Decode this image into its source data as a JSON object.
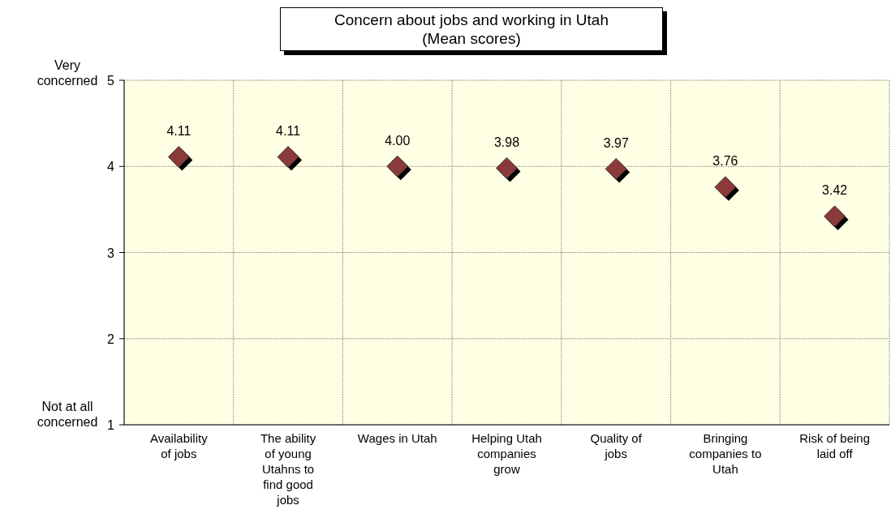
{
  "chart_data": {
    "type": "scatter",
    "title": "Concern about jobs and working in Utah",
    "subtitle": "(Mean scores)",
    "categories": [
      "Availability of jobs",
      "The ability of young Utahns to find good jobs",
      "Wages in Utah",
      "Helping Utah companies grow",
      "Quality of jobs",
      "Bringing companies to Utah",
      "Risk of being laid off"
    ],
    "values": [
      4.11,
      4.11,
      4.0,
      3.98,
      3.97,
      3.76,
      3.42
    ],
    "value_labels": [
      "4.11",
      "4.11",
      "4.00",
      "3.98",
      "3.97",
      "3.76",
      "3.42"
    ],
    "color": "#8b3a3a",
    "marker": "diamond",
    "ylim": [
      1,
      5
    ],
    "yticks": [
      1,
      2,
      3,
      4,
      5
    ],
    "grid": true,
    "annotations": [
      "Very concerned",
      "Not at all concerned"
    ]
  }
}
